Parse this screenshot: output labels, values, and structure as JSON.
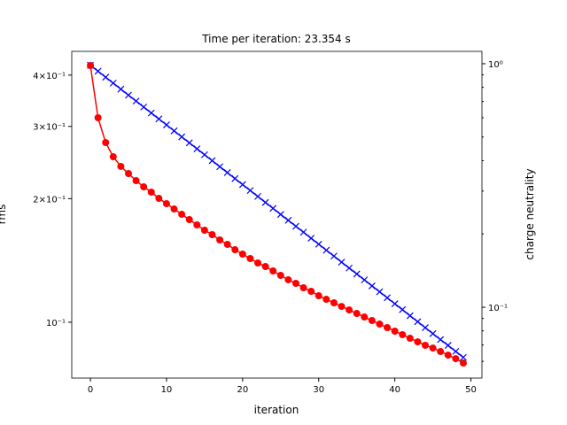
{
  "chart_data": {
    "type": "line",
    "title": "Time per iteration: 23.354 s",
    "xlabel": "iteration",
    "ylabel": "rms",
    "y2label": "charge neutrality",
    "ylabel_color": "#0000ff",
    "y2label_color": "#ff0000",
    "yscale": "log",
    "y2scale": "log",
    "x": [
      0,
      1,
      2,
      3,
      4,
      5,
      6,
      7,
      8,
      9,
      10,
      11,
      12,
      13,
      14,
      15,
      16,
      17,
      18,
      19,
      20,
      21,
      22,
      23,
      24,
      25,
      26,
      27,
      28,
      29,
      30,
      31,
      32,
      33,
      34,
      35,
      36,
      37,
      38,
      39,
      40,
      41,
      42,
      43,
      44,
      45,
      46,
      47,
      48,
      49
    ],
    "series": [
      {
        "name": "rms",
        "color": "#0000ff",
        "marker": "x",
        "values": [
          0.4227,
          0.4088,
          0.3953,
          0.3824,
          0.3697,
          0.3575,
          0.3458,
          0.3344,
          0.3234,
          0.3128,
          0.3025,
          0.2925,
          0.2829,
          0.2736,
          0.2646,
          0.2559,
          0.2475,
          0.2393,
          0.2315,
          0.2238,
          0.2165,
          0.2094,
          0.2025,
          0.1958,
          0.1894,
          0.1831,
          0.1771,
          0.1713,
          0.1657,
          0.1602,
          0.1549,
          0.1498,
          0.1449,
          0.1401,
          0.1355,
          0.1311,
          0.1268,
          0.1226,
          0.1186,
          0.1147,
          0.1109,
          0.1073,
          0.1037,
          0.1003,
          0.097,
          0.0938,
          0.0907,
          0.0878,
          0.0849,
          0.0821
        ]
      },
      {
        "name": "charge neutrality",
        "color": "#ff0000",
        "marker": "o",
        "axis": "y2",
        "values": [
          0.983,
          0.6,
          0.4746,
          0.415,
          0.3787,
          0.354,
          0.331,
          0.3123,
          0.297,
          0.28,
          0.2663,
          0.2532,
          0.2408,
          0.2291,
          0.2179,
          0.2072,
          0.1987,
          0.189,
          0.1812,
          0.1723,
          0.1653,
          0.1585,
          0.152,
          0.147,
          0.141,
          0.1352,
          0.1297,
          0.1254,
          0.1202,
          0.1163,
          0.1115,
          0.1078,
          0.1043,
          0.1008,
          0.0975,
          0.0943,
          0.0912,
          0.0882,
          0.0853,
          0.0825,
          0.0798,
          0.0772,
          0.0746,
          0.0721,
          0.0698,
          0.068,
          0.0658,
          0.0636,
          0.0615,
          0.059
        ]
      }
    ],
    "xlim": [
      -2.45,
      51.45
    ],
    "xticks": [
      0,
      10,
      20,
      30,
      40,
      50
    ],
    "ylim": [
      0.0731,
      0.457
    ],
    "yticks": [
      {
        "value": 0.1,
        "label": "10⁻¹"
      },
      {
        "value": 0.2,
        "label": "2×10⁻¹"
      },
      {
        "value": 0.3,
        "label": "3×10⁻¹"
      },
      {
        "value": 0.4,
        "label": "4×10⁻¹"
      }
    ],
    "y2lim": [
      0.0512,
      1.124
    ],
    "y2ticks": [
      {
        "value": 0.1,
        "label": "10⁻¹"
      },
      {
        "value": 1,
        "label": "10⁰"
      }
    ],
    "y2minorticks": [
      0.06,
      0.07,
      0.08,
      0.09,
      0.2,
      0.3,
      0.4,
      0.5,
      0.6,
      0.7,
      0.8,
      0.9
    ]
  }
}
